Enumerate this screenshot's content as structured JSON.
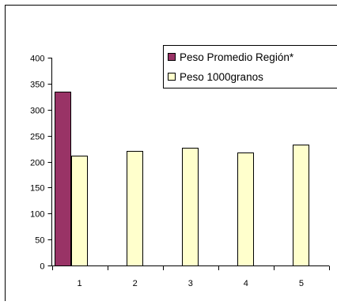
{
  "chart_data": {
    "type": "bar",
    "title": "",
    "xlabel": "",
    "ylabel": "",
    "categories": [
      "1",
      "2",
      "3",
      "4",
      "5"
    ],
    "ylim": [
      0,
      400
    ],
    "yticks": [
      0,
      50,
      100,
      150,
      200,
      250,
      300,
      350,
      400
    ],
    "grid": false,
    "legend_position": "top-right",
    "series": [
      {
        "name": "Peso Promedio Región*",
        "color": "#993366",
        "values": [
          335,
          null,
          null,
          null,
          null
        ]
      },
      {
        "name": "Peso 1000granos",
        "color": "#ffffcc",
        "values": [
          211,
          220,
          227,
          218,
          232
        ]
      }
    ]
  }
}
